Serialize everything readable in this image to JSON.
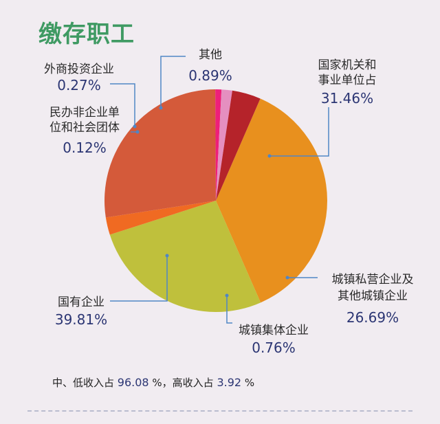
{
  "title": "缴存职工",
  "chart_data": {
    "type": "pie",
    "slices": [
      {
        "label": "国家机关和事业单位占",
        "label_lines": [
          "国家机关和",
          "事业单位占"
        ],
        "pct_text": "31.46%",
        "value": 31.46,
        "color": "#e8901e"
      },
      {
        "label": "城镇私营企业及其他城镇企业",
        "label_lines": [
          "城镇私营企业及",
          "其他城镇企业"
        ],
        "pct_text": "26.69%",
        "value": 26.69,
        "color": "#bfc03c"
      },
      {
        "label": "城镇集体企业",
        "label_lines": [
          "城镇集体企业"
        ],
        "pct_text": "0.76%",
        "value": 0.76,
        "color": "#f06a22"
      },
      {
        "label": "国有企业",
        "label_lines": [
          "国有企业"
        ],
        "pct_text": "39.81%",
        "value": 39.81,
        "color": "#d45a3a"
      },
      {
        "label": "民办非企业单位和社会团体",
        "label_lines": [
          "民办非企业单",
          "位和社会团体"
        ],
        "pct_text": "0.12%",
        "value": 0.12,
        "color": "#ee1f7a"
      },
      {
        "label": "外商投资企业",
        "label_lines": [
          "外商投资企业"
        ],
        "pct_text": "0.27%",
        "value": 0.27,
        "color": "#e58fc0"
      },
      {
        "label": "其他",
        "label_lines": [
          "其他"
        ],
        "pct_text": "0.89%",
        "value": 0.89,
        "color": "#b5232a"
      }
    ]
  },
  "footer": {
    "prefix": "中、低收入占",
    "low_mid": "96.08",
    "mid": "%，高收入占",
    "high": "3.92",
    "suffix": "%"
  }
}
